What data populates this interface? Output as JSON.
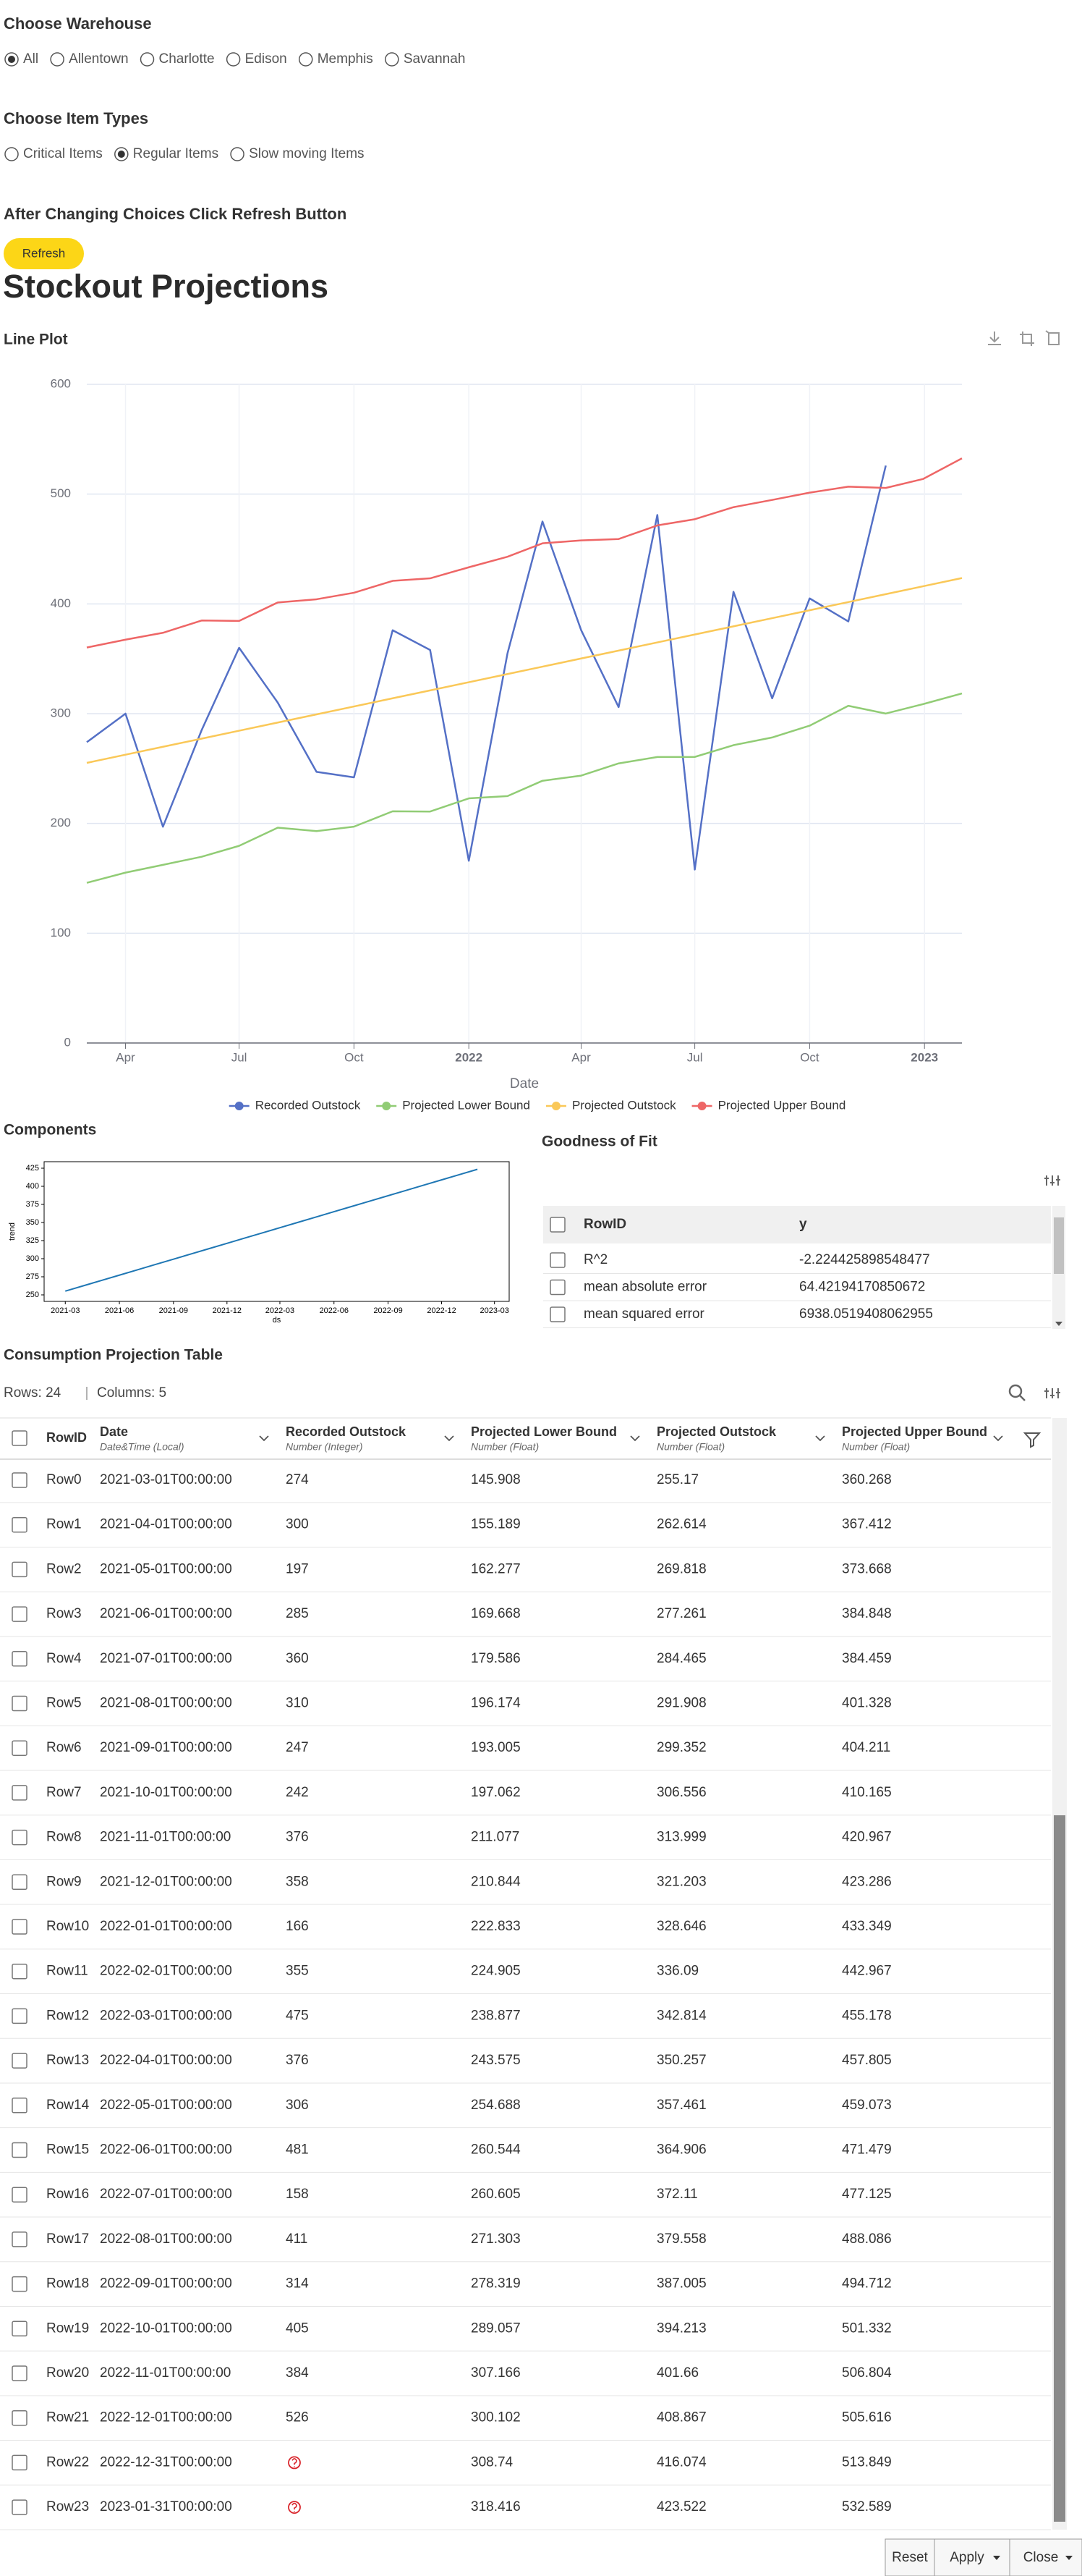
{
  "warehouse": {
    "title": "Choose Warehouse",
    "options": [
      "All",
      "Allentown",
      "Charlotte",
      "Edison",
      "Memphis",
      "Savannah"
    ],
    "selected": 0
  },
  "item_types": {
    "title": "Choose Item Types",
    "options": [
      "Critical Items",
      "Regular Items",
      "Slow moving Items"
    ],
    "selected": 1
  },
  "refresh": {
    "instruction": "After Changing Choices Click Refresh Button",
    "button": "Refresh"
  },
  "heading": "Stockout Projections",
  "chart_data": [
    {
      "type": "line",
      "title": "Line Plot",
      "x_label": "Date",
      "x": [
        "2021-03-01",
        "2021-04-01",
        "2021-05-01",
        "2021-06-01",
        "2021-07-01",
        "2021-08-01",
        "2021-09-01",
        "2021-10-01",
        "2021-11-01",
        "2021-12-01",
        "2022-01-01",
        "2022-02-01",
        "2022-03-01",
        "2022-04-01",
        "2022-05-01",
        "2022-06-01",
        "2022-07-01",
        "2022-08-01",
        "2022-09-01",
        "2022-10-01",
        "2022-11-01",
        "2022-12-01",
        "2022-12-31",
        "2023-01-31"
      ],
      "xlim": [
        "2021-03-01",
        "2023-01-31"
      ],
      "xticks": [
        {
          "value": "2021-04-01",
          "label": "Apr"
        },
        {
          "value": "2021-07-01",
          "label": "Jul"
        },
        {
          "value": "2021-10-01",
          "label": "Oct"
        },
        {
          "value": "2022-01-01",
          "label": "2022"
        },
        {
          "value": "2022-04-01",
          "label": "Apr"
        },
        {
          "value": "2022-07-01",
          "label": "Jul"
        },
        {
          "value": "2022-10-01",
          "label": "Oct"
        },
        {
          "value": "2023-01-01",
          "label": "2023"
        }
      ],
      "ylim": [
        0,
        600
      ],
      "yticks": [
        0,
        100,
        200,
        300,
        400,
        500,
        600
      ],
      "grid": true,
      "legend": "bottom",
      "series": [
        {
          "name": "Recorded Outstock",
          "color": "#5470c6",
          "values": [
            274,
            300,
            197,
            285,
            360,
            310,
            247,
            242,
            376,
            358,
            166,
            355,
            475,
            376,
            306,
            481,
            158,
            411,
            314,
            405,
            384,
            526,
            null,
            null
          ]
        },
        {
          "name": "Projected Lower Bound",
          "color": "#91cc75",
          "values": [
            145.908,
            155.189,
            162.277,
            169.668,
            179.586,
            196.174,
            193.005,
            197.062,
            211.077,
            210.844,
            222.833,
            224.905,
            238.877,
            243.575,
            254.688,
            260.544,
            260.605,
            271.303,
            278.319,
            289.057,
            307.166,
            300.102,
            308.74,
            318.416
          ]
        },
        {
          "name": "Projected Outstock",
          "color": "#fac858",
          "values": [
            255.17,
            262.614,
            269.818,
            277.261,
            284.465,
            291.908,
            299.352,
            306.556,
            313.999,
            321.203,
            328.646,
            336.09,
            342.814,
            350.257,
            357.461,
            364.906,
            372.11,
            379.558,
            387.005,
            394.213,
            401.66,
            408.867,
            416.074,
            423.522
          ]
        },
        {
          "name": "Projected Upper Bound",
          "color": "#ee6666",
          "values": [
            360.268,
            367.412,
            373.668,
            384.848,
            384.459,
            401.328,
            404.211,
            410.165,
            420.967,
            423.286,
            433.349,
            442.967,
            455.178,
            457.805,
            459.073,
            471.479,
            477.125,
            488.086,
            494.712,
            501.332,
            506.804,
            505.616,
            513.849,
            532.589
          ]
        }
      ]
    },
    {
      "type": "line",
      "title": "Components",
      "x_label": "ds",
      "y_label": "trend",
      "x": [
        "2021-03-01",
        "2021-04-01",
        "2021-05-01",
        "2021-06-01",
        "2021-07-01",
        "2021-08-01",
        "2021-09-01",
        "2021-10-01",
        "2021-11-01",
        "2021-12-01",
        "2022-01-01",
        "2022-02-01",
        "2022-03-01",
        "2022-04-01",
        "2022-05-01",
        "2022-06-01",
        "2022-07-01",
        "2022-08-01",
        "2022-09-01",
        "2022-10-01",
        "2022-11-01",
        "2022-12-01",
        "2022-12-31",
        "2023-01-31"
      ],
      "xlim": [
        "2021-01-24",
        "2023-03-26"
      ],
      "xticks": [
        "2021-03",
        "2021-06",
        "2021-09",
        "2021-12",
        "2022-03",
        "2022-06",
        "2022-09",
        "2022-12",
        "2023-03"
      ],
      "ylim": [
        241,
        434
      ],
      "yticks": [
        250,
        275,
        300,
        325,
        350,
        375,
        400,
        425
      ],
      "series": [
        {
          "color": "#1f77b4",
          "values": [
            255.17,
            262.614,
            269.818,
            277.261,
            284.465,
            291.908,
            299.352,
            306.556,
            313.999,
            321.203,
            328.646,
            336.09,
            342.814,
            350.257,
            357.461,
            364.906,
            372.11,
            379.558,
            387.005,
            394.213,
            401.66,
            408.867,
            416.074,
            423.522
          ]
        }
      ]
    }
  ],
  "goodness_of_fit": {
    "title": "Goodness of Fit",
    "columns": [
      "RowID",
      "y"
    ],
    "rows": [
      [
        "R^2",
        "-2.224425898548477"
      ],
      [
        "mean absolute error",
        "64.42194170850672"
      ],
      [
        "mean squared error",
        "6938.0519408062955"
      ]
    ]
  },
  "table": {
    "title": "Consumption Projection Table",
    "rows_label": "Rows: 24",
    "columns_label": "Columns: 5",
    "columns": [
      {
        "name": "RowID"
      },
      {
        "name": "Date",
        "type": "Date&Time (Local)"
      },
      {
        "name": "Recorded Outstock",
        "type": "Number (Integer)"
      },
      {
        "name": "Projected Lower Bound",
        "type": "Number (Float)"
      },
      {
        "name": "Projected Outstock",
        "type": "Number (Float)"
      },
      {
        "name": "Projected Upper Bound",
        "type": "Number (Float)"
      }
    ],
    "rows": [
      [
        "Row0",
        "2021-03-01T00:00:00",
        274,
        145.908,
        255.17,
        360.268
      ],
      [
        "Row1",
        "2021-04-01T00:00:00",
        300,
        155.189,
        262.614,
        367.412
      ],
      [
        "Row2",
        "2021-05-01T00:00:00",
        197,
        162.277,
        269.818,
        373.668
      ],
      [
        "Row3",
        "2021-06-01T00:00:00",
        285,
        169.668,
        277.261,
        384.848
      ],
      [
        "Row4",
        "2021-07-01T00:00:00",
        360,
        179.586,
        284.465,
        384.459
      ],
      [
        "Row5",
        "2021-08-01T00:00:00",
        310,
        196.174,
        291.908,
        401.328
      ],
      [
        "Row6",
        "2021-09-01T00:00:00",
        247,
        193.005,
        299.352,
        404.211
      ],
      [
        "Row7",
        "2021-10-01T00:00:00",
        242,
        197.062,
        306.556,
        410.165
      ],
      [
        "Row8",
        "2021-11-01T00:00:00",
        376,
        211.077,
        313.999,
        420.967
      ],
      [
        "Row9",
        "2021-12-01T00:00:00",
        358,
        210.844,
        321.203,
        423.286
      ],
      [
        "Row10",
        "2022-01-01T00:00:00",
        166,
        222.833,
        328.646,
        433.349
      ],
      [
        "Row11",
        "2022-02-01T00:00:00",
        355,
        224.905,
        336.09,
        442.967
      ],
      [
        "Row12",
        "2022-03-01T00:00:00",
        475,
        238.877,
        342.814,
        455.178
      ],
      [
        "Row13",
        "2022-04-01T00:00:00",
        376,
        243.575,
        350.257,
        457.805
      ],
      [
        "Row14",
        "2022-05-01T00:00:00",
        306,
        254.688,
        357.461,
        459.073
      ],
      [
        "Row15",
        "2022-06-01T00:00:00",
        481,
        260.544,
        364.906,
        471.479
      ],
      [
        "Row16",
        "2022-07-01T00:00:00",
        158,
        260.605,
        372.11,
        477.125
      ],
      [
        "Row17",
        "2022-08-01T00:00:00",
        411,
        271.303,
        379.558,
        488.086
      ],
      [
        "Row18",
        "2022-09-01T00:00:00",
        314,
        278.319,
        387.005,
        494.712
      ],
      [
        "Row19",
        "2022-10-01T00:00:00",
        405,
        289.057,
        394.213,
        501.332
      ],
      [
        "Row20",
        "2022-11-01T00:00:00",
        384,
        307.166,
        401.66,
        506.804
      ],
      [
        "Row21",
        "2022-12-01T00:00:00",
        526,
        300.102,
        408.867,
        505.616
      ],
      [
        "Row22",
        "2022-12-31T00:00:00",
        null,
        308.74,
        416.074,
        513.849
      ],
      [
        "Row23",
        "2023-01-31T00:00:00",
        null,
        318.416,
        423.522,
        532.589
      ]
    ]
  },
  "footer": {
    "buttons": [
      "Reset",
      "Apply",
      "Close"
    ]
  }
}
